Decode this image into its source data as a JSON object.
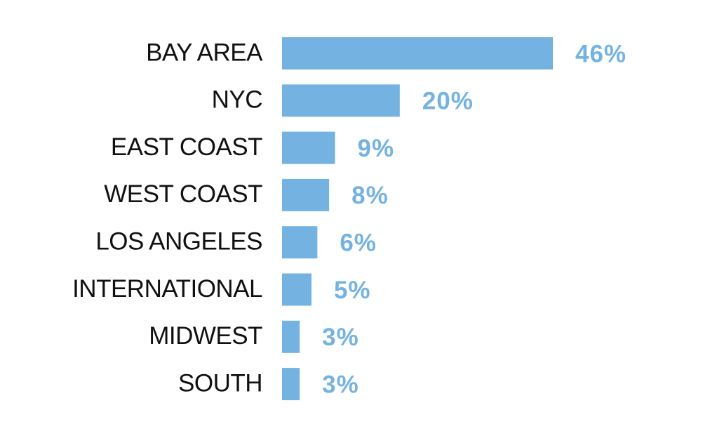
{
  "chart_data": {
    "type": "bar",
    "orientation": "horizontal",
    "categories": [
      "BAY AREA",
      "NYC",
      "EAST COAST",
      "WEST COAST",
      "LOS ANGELES",
      "INTERNATIONAL",
      "MIDWEST",
      "SOUTH"
    ],
    "values": [
      46,
      20,
      9,
      8,
      6,
      5,
      3,
      3
    ],
    "value_labels": [
      "46%",
      "20%",
      "9%",
      "8%",
      "6%",
      "5%",
      "3%",
      "3%"
    ],
    "color": "#74b3e1"
  }
}
